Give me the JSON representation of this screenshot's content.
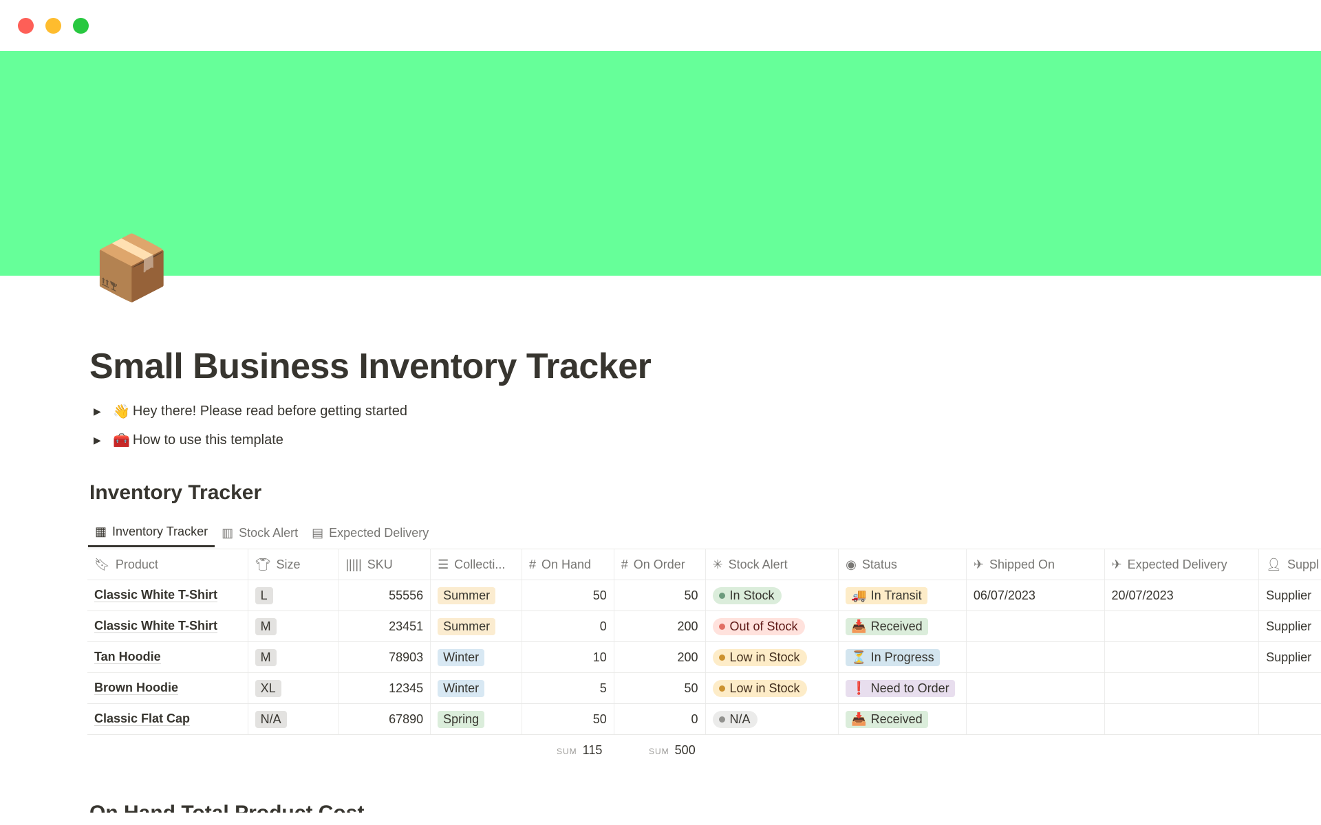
{
  "window": {
    "buttons": [
      {
        "name": "close",
        "color": "#fe5f57"
      },
      {
        "name": "minimize",
        "color": "#febc2e"
      },
      {
        "name": "maximize",
        "color": "#28c840"
      }
    ]
  },
  "cover": {
    "color": "#66ff99"
  },
  "page": {
    "icon": "📦",
    "title": "Small Business Inventory Tracker"
  },
  "toggles": [
    {
      "emoji": "👋",
      "label": "Hey there! Please read before getting started"
    },
    {
      "emoji": "🧰",
      "label": "How to use this template"
    }
  ],
  "database": {
    "heading": "Inventory Tracker",
    "views": [
      {
        "icon": "table-icon",
        "label": "Inventory Tracker",
        "active": true
      },
      {
        "icon": "board-icon",
        "label": "Stock Alert"
      },
      {
        "icon": "calendar-icon",
        "label": "Expected Delivery"
      }
    ],
    "columns": [
      {
        "icon": "bookmark-icon",
        "label": "Product"
      },
      {
        "icon": "tshirt-icon",
        "label": "Size"
      },
      {
        "icon": "barcode-icon",
        "label": "SKU"
      },
      {
        "icon": "list-icon",
        "label": "Collecti..."
      },
      {
        "icon": "hash-icon",
        "label": "On Hand"
      },
      {
        "icon": "hash-icon",
        "label": "On Order"
      },
      {
        "icon": "loading-icon",
        "label": "Stock Alert"
      },
      {
        "icon": "status-icon",
        "label": "Status"
      },
      {
        "icon": "takeoff-icon",
        "label": "Shipped On"
      },
      {
        "icon": "landing-icon",
        "label": "Expected Delivery"
      },
      {
        "icon": "person-icon",
        "label": "Suppl"
      }
    ],
    "rows": [
      {
        "product": "Classic White T-Shirt",
        "size": "L",
        "sku": "55556",
        "collection": "Summer",
        "on_hand": "50",
        "on_order": "50",
        "stock_alert": "In Stock",
        "status_emoji": "🚚",
        "status": "In Transit",
        "shipped_on": "06/07/2023",
        "expected_delivery": "20/07/2023",
        "supplier": "Supplier"
      },
      {
        "product": "Classic White T-Shirt",
        "size": "M",
        "sku": "23451",
        "collection": "Summer",
        "on_hand": "0",
        "on_order": "200",
        "stock_alert": "Out of Stock",
        "status_emoji": "📥",
        "status": "Received",
        "shipped_on": "",
        "expected_delivery": "",
        "supplier": "Supplier"
      },
      {
        "product": "Tan Hoodie",
        "size": "M",
        "sku": "78903",
        "collection": "Winter",
        "on_hand": "10",
        "on_order": "200",
        "stock_alert": "Low in Stock",
        "status_emoji": "⏳",
        "status": "In Progress",
        "shipped_on": "",
        "expected_delivery": "",
        "supplier": "Supplier"
      },
      {
        "product": "Brown Hoodie",
        "size": "XL",
        "sku": "12345",
        "collection": "Winter",
        "on_hand": "5",
        "on_order": "50",
        "stock_alert": "Low in Stock",
        "status_emoji": "❗",
        "status": "Need to Order",
        "shipped_on": "",
        "expected_delivery": "",
        "supplier": ""
      },
      {
        "product": "Classic Flat Cap",
        "size": "N/A",
        "sku": "67890",
        "collection": "Spring",
        "on_hand": "50",
        "on_order": "0",
        "stock_alert": "N/A",
        "status_emoji": "📥",
        "status": "Received",
        "shipped_on": "",
        "expected_delivery": "",
        "supplier": ""
      }
    ],
    "sums": {
      "label": "SUM",
      "on_hand": "115",
      "on_order": "500"
    }
  },
  "next_heading": "On Hand Total Product Cost"
}
